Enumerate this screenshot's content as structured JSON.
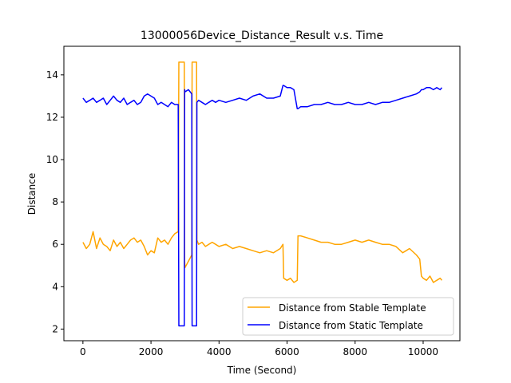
{
  "chart_data": {
    "type": "line",
    "title": "13000056Device_Distance_Result v.s. Time",
    "xlabel": "Time (Second)",
    "ylabel": "Distance",
    "xlim": [
      -560,
      11080
    ],
    "ylim": [
      1.45,
      15.35
    ],
    "xticks": [
      0,
      2000,
      4000,
      6000,
      8000,
      10000
    ],
    "yticks": [
      2,
      4,
      6,
      8,
      10,
      12,
      14
    ],
    "xtick_labels": [
      "0",
      "2000",
      "4000",
      "6000",
      "8000",
      "10000"
    ],
    "ytick_labels": [
      "2",
      "4",
      "6",
      "8",
      "10",
      "12",
      "14"
    ],
    "grid": false,
    "legend_position": "lower-right",
    "series": [
      {
        "name": "Distance from Stable Template",
        "color": "#ffa500",
        "x": [
          0,
          100,
          200,
          300,
          400,
          500,
          600,
          700,
          800,
          900,
          1000,
          1100,
          1200,
          1300,
          1400,
          1500,
          1600,
          1700,
          1800,
          1900,
          2000,
          2100,
          2200,
          2300,
          2400,
          2500,
          2600,
          2700,
          2800,
          2820,
          2830,
          2980,
          2990,
          3000,
          3100,
          3200,
          3210,
          3220,
          3340,
          3350,
          3400,
          3500,
          3600,
          3700,
          3800,
          3900,
          4000,
          4200,
          4400,
          4600,
          4800,
          5000,
          5200,
          5400,
          5600,
          5800,
          5880,
          5900,
          6000,
          6100,
          6200,
          6300,
          6320,
          6400,
          6600,
          6800,
          7000,
          7200,
          7400,
          7600,
          7800,
          8000,
          8200,
          8400,
          8600,
          8800,
          9000,
          9200,
          9400,
          9600,
          9800,
          9900,
          9950,
          10000,
          10100,
          10200,
          10300,
          10400,
          10500,
          10550
        ],
        "y": [
          6.1,
          5.8,
          6.0,
          6.6,
          5.8,
          6.3,
          6.0,
          5.9,
          5.7,
          6.2,
          5.9,
          6.1,
          5.8,
          6.0,
          6.2,
          6.3,
          6.1,
          6.2,
          5.9,
          5.5,
          5.7,
          5.6,
          6.3,
          6.1,
          6.2,
          6.0,
          6.3,
          6.5,
          6.6,
          14.6,
          14.6,
          14.6,
          5.2,
          4.9,
          5.2,
          5.5,
          14.6,
          14.6,
          14.6,
          6.2,
          6.0,
          6.1,
          5.9,
          6.0,
          6.1,
          6.0,
          5.9,
          6.0,
          5.8,
          5.9,
          5.8,
          5.7,
          5.6,
          5.7,
          5.6,
          5.8,
          6.0,
          4.4,
          4.3,
          4.4,
          4.2,
          4.3,
          6.4,
          6.4,
          6.3,
          6.2,
          6.1,
          6.1,
          6.0,
          6.0,
          6.1,
          6.2,
          6.1,
          6.2,
          6.1,
          6.0,
          6.0,
          5.9,
          5.6,
          5.8,
          5.5,
          5.3,
          4.5,
          4.4,
          4.3,
          4.5,
          4.2,
          4.3,
          4.4,
          4.3
        ]
      },
      {
        "name": "Distance from Static Template",
        "color": "#0000ff",
        "x": [
          0,
          100,
          200,
          300,
          400,
          500,
          600,
          700,
          800,
          900,
          1000,
          1100,
          1200,
          1300,
          1400,
          1500,
          1600,
          1700,
          1800,
          1900,
          2000,
          2100,
          2200,
          2300,
          2400,
          2500,
          2600,
          2700,
          2800,
          2820,
          2830,
          2980,
          2990,
          3000,
          3100,
          3200,
          3210,
          3220,
          3340,
          3350,
          3400,
          3500,
          3600,
          3700,
          3800,
          3900,
          4000,
          4200,
          4400,
          4600,
          4800,
          5000,
          5200,
          5400,
          5600,
          5800,
          5880,
          5900,
          6000,
          6100,
          6200,
          6300,
          6320,
          6400,
          6600,
          6800,
          7000,
          7200,
          7400,
          7600,
          7800,
          8000,
          8200,
          8400,
          8600,
          8800,
          9000,
          9200,
          9400,
          9600,
          9800,
          9900,
          9950,
          10000,
          10100,
          10200,
          10300,
          10400,
          10500,
          10550
        ],
        "y": [
          12.9,
          12.7,
          12.8,
          12.9,
          12.7,
          12.8,
          12.9,
          12.6,
          12.8,
          13.0,
          12.8,
          12.7,
          12.9,
          12.6,
          12.7,
          12.8,
          12.6,
          12.7,
          13.0,
          13.1,
          13.0,
          12.9,
          12.6,
          12.7,
          12.6,
          12.5,
          12.7,
          12.6,
          12.6,
          2.15,
          2.15,
          2.15,
          13.3,
          13.2,
          13.3,
          13.1,
          2.15,
          2.15,
          2.15,
          12.7,
          12.8,
          12.7,
          12.6,
          12.7,
          12.8,
          12.7,
          12.8,
          12.7,
          12.8,
          12.9,
          12.8,
          13.0,
          13.1,
          12.9,
          12.9,
          13.0,
          13.5,
          13.5,
          13.4,
          13.4,
          13.3,
          12.4,
          12.4,
          12.5,
          12.5,
          12.6,
          12.6,
          12.7,
          12.6,
          12.6,
          12.7,
          12.6,
          12.6,
          12.7,
          12.6,
          12.7,
          12.7,
          12.8,
          12.9,
          13.0,
          13.1,
          13.2,
          13.3,
          13.3,
          13.4,
          13.4,
          13.3,
          13.4,
          13.3,
          13.4
        ]
      }
    ]
  }
}
